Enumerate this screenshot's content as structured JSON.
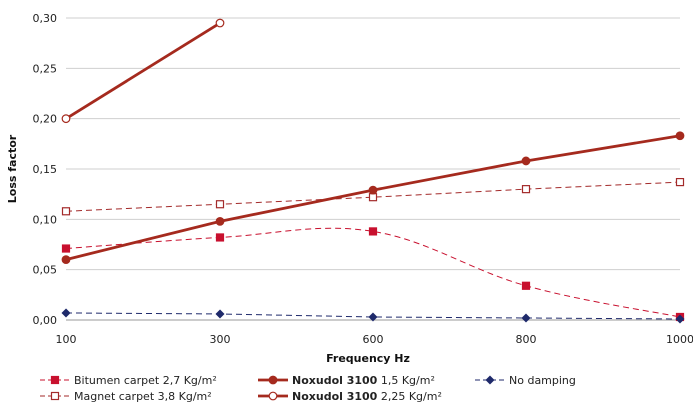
{
  "chart_data": {
    "type": "line",
    "xlabel": "Frequency Hz",
    "ylabel": "Loss factor",
    "x_ticks": [
      100,
      300,
      600,
      800,
      1000
    ],
    "y_ticks": [
      "0,00",
      "0,05",
      "0,10",
      "0,15",
      "0,20",
      "0,25",
      "0,30"
    ],
    "y_tick_values": [
      0,
      0.05,
      0.1,
      0.15,
      0.2,
      0.25,
      0.3
    ],
    "ylim": [
      0,
      0.3
    ],
    "grid": "horizontal",
    "legend_position": "bottom",
    "series": [
      {
        "legend_bold": "",
        "legend_rest": "Bitumen carpet  2,7 Kg/m²",
        "color": "#c8102e",
        "dash": true,
        "smooth": true,
        "marker": "square-filled",
        "x": [
          100,
          300,
          600,
          800,
          1000
        ],
        "y": [
          0.071,
          0.082,
          0.088,
          0.034,
          0.003
        ]
      },
      {
        "legend_bold": "",
        "legend_rest": "Magnet carpet  3,8 Kg/m²",
        "color": "#a32a2a",
        "dash": true,
        "smooth": false,
        "marker": "square-open",
        "x": [
          100,
          300,
          600,
          800,
          1000
        ],
        "y": [
          0.108,
          0.115,
          0.122,
          0.13,
          0.137
        ]
      },
      {
        "legend_bold": "Noxudol 3100",
        "legend_rest": "  1,5 Kg/m²",
        "color": "#a52a1e",
        "dash": false,
        "smooth": false,
        "marker": "circle-filled",
        "x": [
          100,
          300,
          600,
          800,
          1000
        ],
        "y": [
          0.06,
          0.098,
          0.129,
          0.158,
          0.183
        ]
      },
      {
        "legend_bold": "Noxudol 3100",
        "legend_rest": "  2,25 Kg/m²",
        "color": "#a52a1e",
        "dash": false,
        "smooth": false,
        "marker": "circle-open",
        "x": [
          100,
          300
        ],
        "y": [
          0.2,
          0.295
        ]
      },
      {
        "legend_bold": "",
        "legend_rest": "No damping",
        "color": "#1f2a6b",
        "dash": true,
        "smooth": false,
        "marker": "diamond-filled",
        "x": [
          100,
          300,
          600,
          800,
          1000
        ],
        "y": [
          0.007,
          0.006,
          0.003,
          0.002,
          0.001
        ]
      }
    ]
  }
}
